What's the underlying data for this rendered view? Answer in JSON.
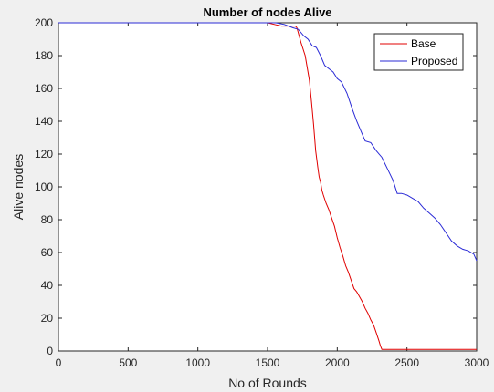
{
  "chart_data": {
    "type": "line",
    "title": "Number of nodes Alive",
    "xlabel": "No of Rounds",
    "ylabel": "Alive nodes",
    "xlim": [
      0,
      3000
    ],
    "ylim": [
      0,
      200
    ],
    "xticks": [
      0,
      500,
      1000,
      1500,
      2000,
      2500,
      3000
    ],
    "yticks": [
      0,
      20,
      40,
      60,
      80,
      100,
      120,
      140,
      160,
      180,
      200
    ],
    "grid": false,
    "legend": "top-right",
    "series": [
      {
        "name": "Base",
        "color": "#e00000",
        "x": [
          0,
          1500,
          1550,
          1600,
          1650,
          1700,
          1710,
          1740,
          1770,
          1800,
          1815,
          1830,
          1845,
          1860,
          1870,
          1880,
          1890,
          1900,
          1920,
          1940,
          1960,
          1980,
          2000,
          2020,
          2040,
          2060,
          2080,
          2100,
          2120,
          2140,
          2160,
          2180,
          2200,
          2220,
          2240,
          2260,
          2280,
          2300,
          2310,
          2320,
          3000
        ],
        "y": [
          200,
          200,
          199,
          198,
          198,
          198,
          197,
          188,
          180,
          165,
          152,
          138,
          122,
          112,
          106,
          103,
          98,
          95,
          90,
          86,
          81,
          76,
          69,
          63,
          58,
          52,
          48,
          43,
          38,
          36,
          33,
          30,
          26,
          23,
          19,
          16,
          11,
          6,
          3,
          1,
          1
        ]
      },
      {
        "name": "Proposed",
        "color": "#2b2bd6",
        "x": [
          0,
          1500,
          1560,
          1620,
          1680,
          1720,
          1760,
          1790,
          1820,
          1850,
          1880,
          1910,
          1940,
          1970,
          2000,
          2030,
          2070,
          2110,
          2140,
          2170,
          2200,
          2240,
          2280,
          2320,
          2360,
          2400,
          2430,
          2460,
          2500,
          2540,
          2580,
          2620,
          2660,
          2700,
          2740,
          2780,
          2820,
          2860,
          2900,
          2940,
          2980,
          3000
        ],
        "y": [
          200,
          200,
          200,
          199,
          197,
          196,
          192,
          190,
          186,
          185,
          180,
          174,
          172,
          170,
          166,
          164,
          157,
          147,
          140,
          134,
          128,
          127,
          122,
          118,
          111,
          104,
          96,
          96,
          95,
          93,
          91,
          87,
          84,
          81,
          77,
          72,
          67,
          64,
          62,
          61,
          59,
          55
        ]
      }
    ]
  }
}
